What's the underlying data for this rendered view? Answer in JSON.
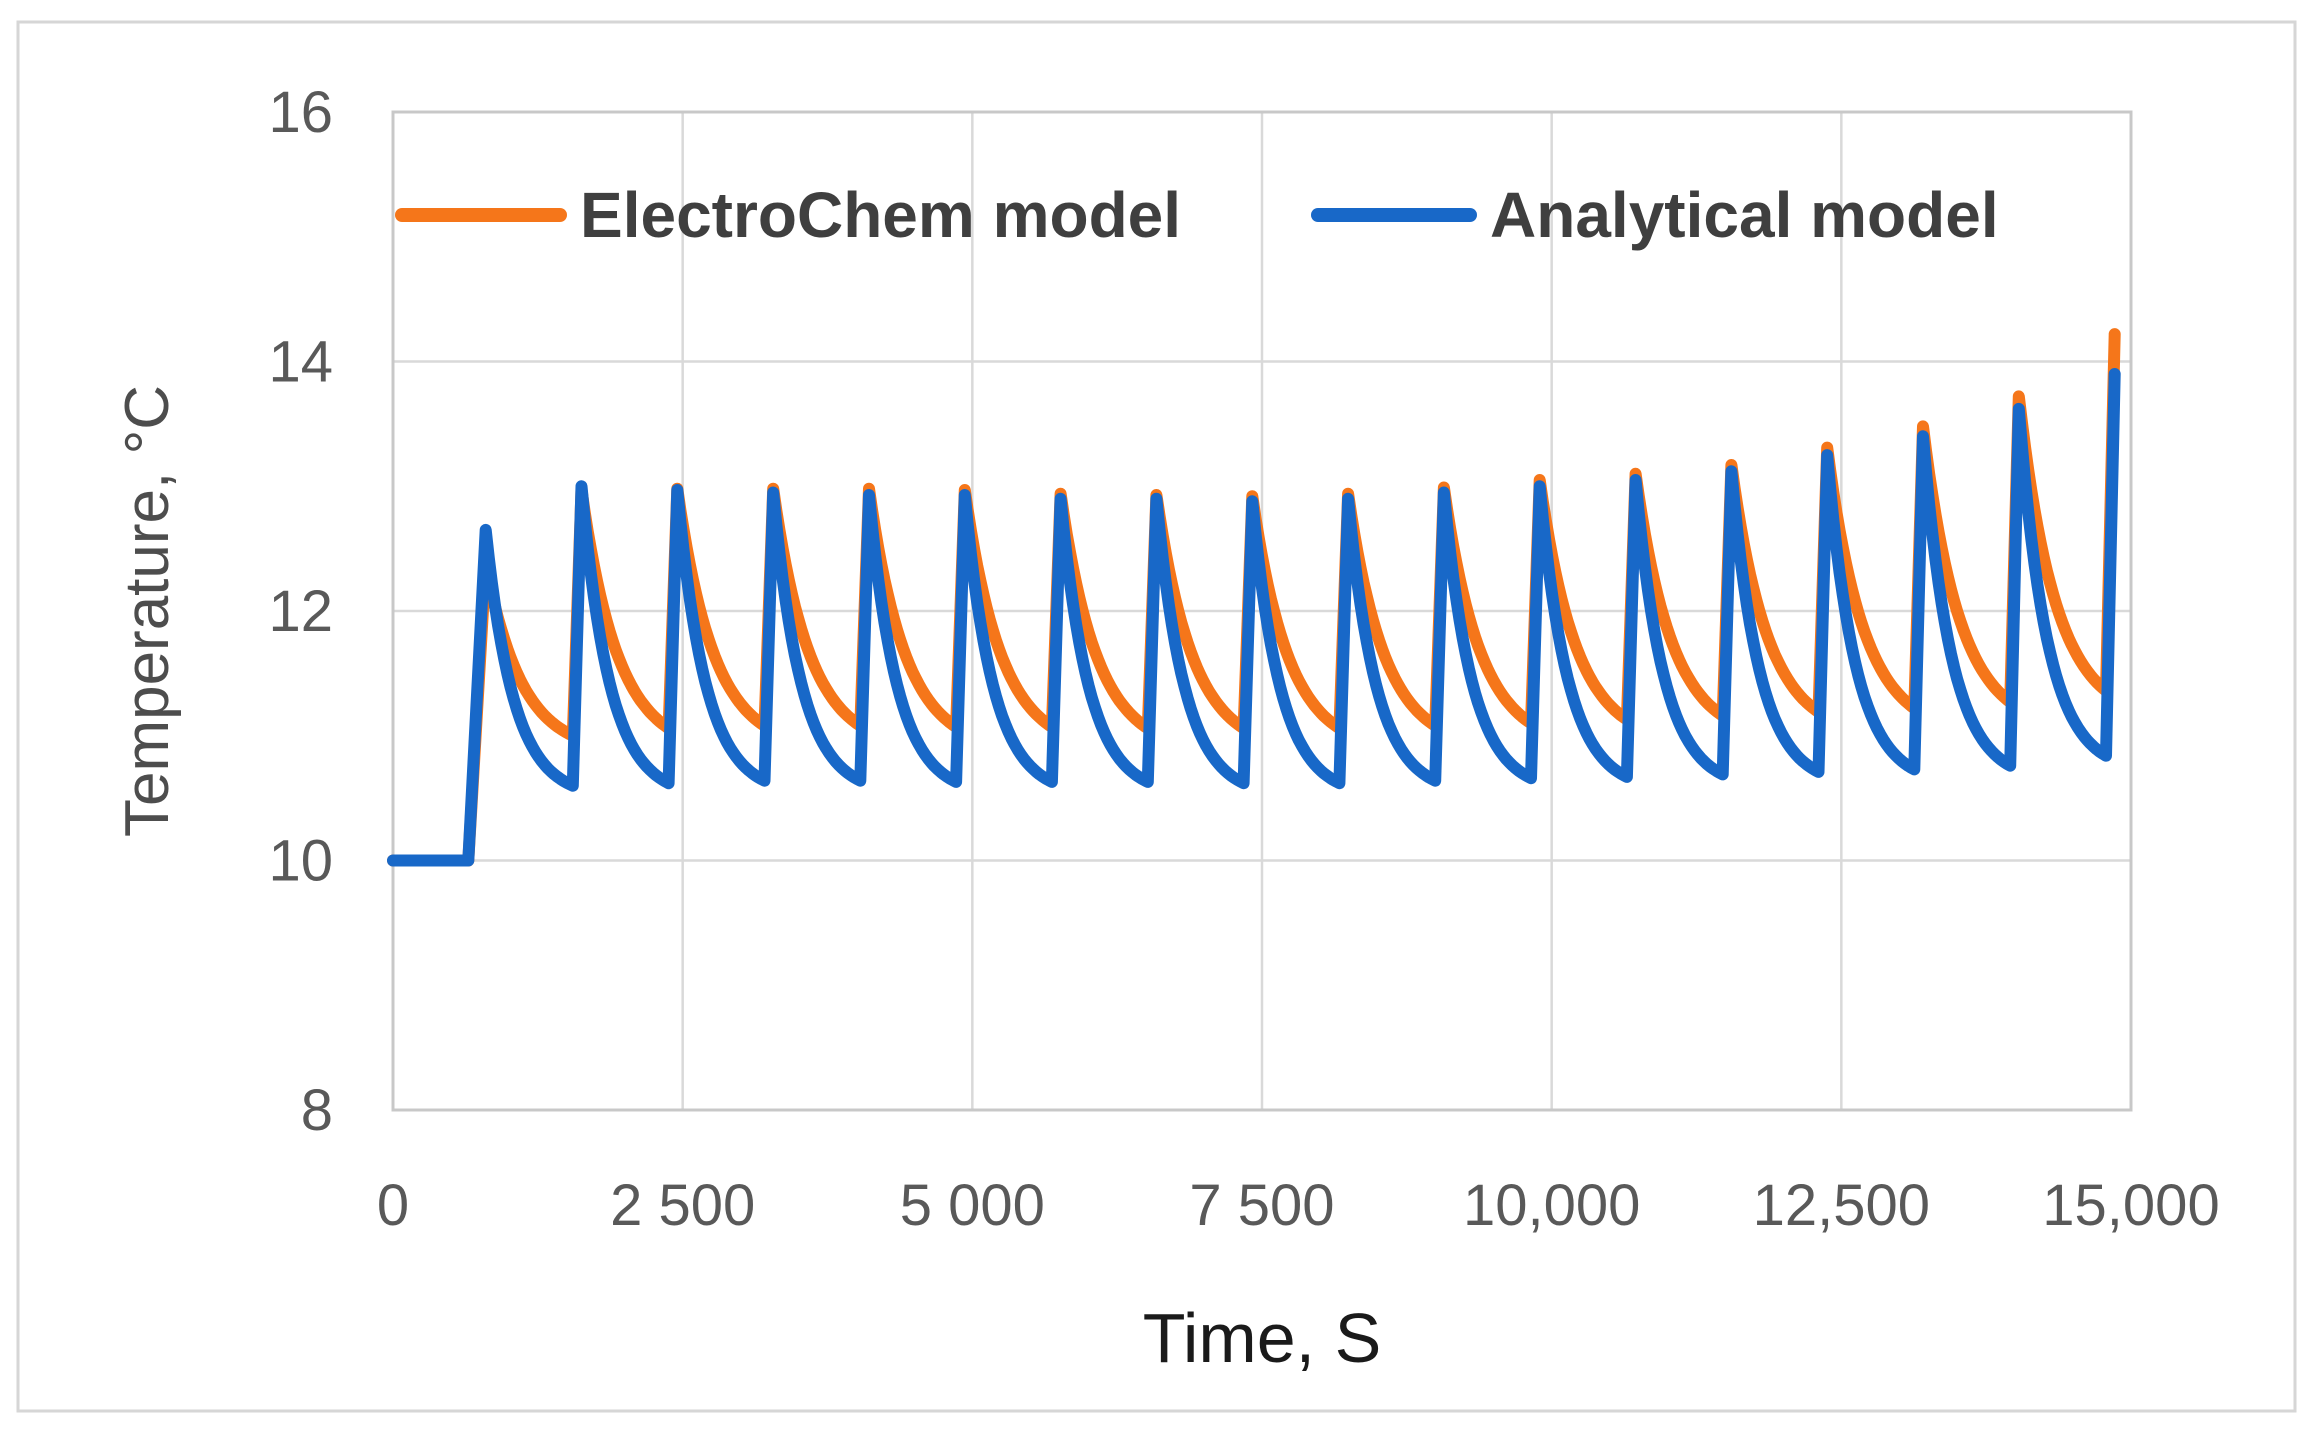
{
  "figure": {
    "type": "excel-style line chart",
    "background": "#ffffff",
    "border_color": "#d6d6d6",
    "gridline_color": "#d9d9d9",
    "plot_border_color": "#c8c8c8"
  },
  "chart_data": {
    "type": "line",
    "title": "",
    "xlabel": "Time, S",
    "ylabel": "Temperature, °C",
    "xlim": [
      0,
      15000
    ],
    "ylim": [
      8,
      16
    ],
    "grid": true,
    "legend_position": "top-inside",
    "x_ticks": [
      {
        "value": 0,
        "label": "0"
      },
      {
        "value": 2500,
        "label": "2 500"
      },
      {
        "value": 5000,
        "label": "5 000"
      },
      {
        "value": 7500,
        "label": "7 500"
      },
      {
        "value": 10000,
        "label": "10,000"
      },
      {
        "value": 12500,
        "label": "12,500"
      },
      {
        "value": 15000,
        "label": "15,000"
      }
    ],
    "y_ticks": [
      {
        "value": 8,
        "label": "8"
      },
      {
        "value": 10,
        "label": "10"
      },
      {
        "value": 12,
        "label": "12"
      },
      {
        "value": 14,
        "label": "14"
      },
      {
        "value": 16,
        "label": "16"
      }
    ],
    "waveform": {
      "description": "Both curves start flat at 10 °C, step up at ~650 s, then form a sawtooth: sharp rise to each peak followed by an exponential-like decay to a trough; peaks slowly grow toward the right edge and the traces end on the final peak.",
      "base_value": 10.0,
      "flat_until_s": 650,
      "rise_duration_s": 75,
      "peak_times_s": [
        800,
        1627,
        2454,
        3281,
        4108,
        4935,
        5762,
        6589,
        7416,
        8243,
        9070,
        9897,
        10724,
        11551,
        12378,
        13205,
        14032,
        14859
      ]
    },
    "series": [
      {
        "name": "ElectroChem model",
        "color": "#f5761a",
        "base": 10.0,
        "decay_k": 2.4,
        "peaks_T": [
          12.38,
          12.97,
          12.98,
          12.98,
          12.98,
          12.97,
          12.94,
          12.93,
          12.92,
          12.94,
          12.99,
          13.05,
          13.1,
          13.17,
          13.31,
          13.48,
          13.72,
          14.22
        ],
        "troughs_T": [
          11.0,
          11.06,
          11.08,
          11.08,
          11.07,
          11.07,
          11.06,
          11.06,
          11.06,
          11.08,
          11.1,
          11.13,
          11.16,
          11.19,
          11.22,
          11.27,
          11.36
        ]
      },
      {
        "name": "Analytical model",
        "color": "#1868c8",
        "base": 10.0,
        "decay_k": 3.1,
        "peaks_T": [
          12.65,
          13.0,
          12.97,
          12.95,
          12.93,
          12.93,
          12.9,
          12.9,
          12.88,
          12.9,
          12.95,
          13.0,
          13.05,
          13.12,
          13.25,
          13.4,
          13.62,
          13.9
        ],
        "troughs_T": [
          10.6,
          10.62,
          10.64,
          10.64,
          10.63,
          10.63,
          10.63,
          10.62,
          10.62,
          10.64,
          10.66,
          10.67,
          10.69,
          10.71,
          10.73,
          10.76,
          10.84
        ]
      }
    ]
  }
}
